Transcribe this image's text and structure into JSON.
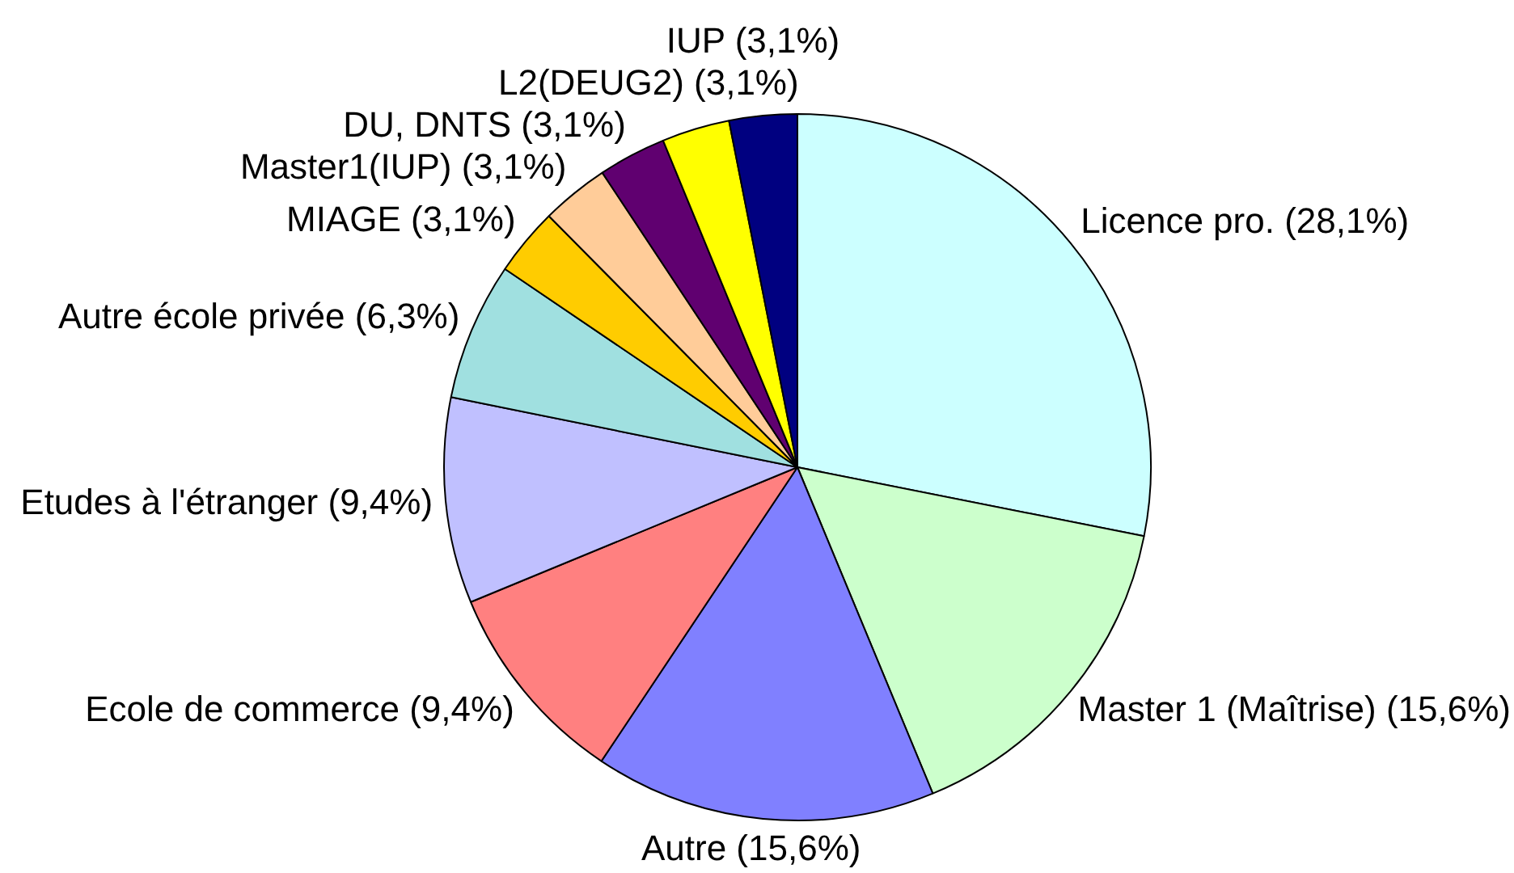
{
  "chart_data": {
    "type": "pie",
    "categories": [
      "Licence pro.",
      "Master 1 (Maîtrise)",
      "Autre",
      "Ecole de commerce",
      "Etudes à l'étranger",
      "Autre école privée",
      "MIAGE",
      "Master1(IUP)",
      "DU, DNTS",
      "L2(DEUG2)",
      "IUP"
    ],
    "values": [
      28.1,
      15.6,
      15.6,
      9.4,
      9.4,
      6.3,
      3.1,
      3.1,
      3.1,
      3.1,
      3.1
    ],
    "value_labels": [
      "(28,1%)",
      "(15,6%)",
      "(15,6%)",
      "(9,4%)",
      "(9,4%)",
      "(6,3%)",
      "(3,1%)",
      "(3,1%)",
      "(3,1%)",
      "(3,1%)",
      "(3,1%)"
    ],
    "colors": [
      "#ccffff",
      "#ccffcc",
      "#8080ff",
      "#ff8080",
      "#c0c0ff",
      "#a0e0e0",
      "#ffcc00",
      "#ffcc99",
      "#600070",
      "#ffff00",
      "#000080"
    ],
    "legend": false
  }
}
